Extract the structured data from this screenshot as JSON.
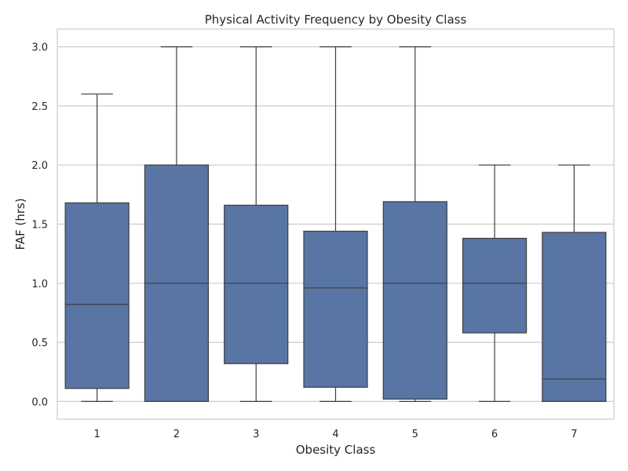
{
  "chart_data": {
    "type": "box",
    "title": "Physical Activity Frequency by Obesity Class",
    "xlabel": "Obesity Class",
    "ylabel": "FAF (hrs)",
    "ylim": [
      -0.15,
      3.15
    ],
    "yticks": [
      0.0,
      0.5,
      1.0,
      1.5,
      2.0,
      2.5,
      3.0
    ],
    "ytick_labels": [
      "0.0",
      "0.5",
      "1.0",
      "1.5",
      "2.0",
      "2.5",
      "3.0"
    ],
    "grid": true,
    "box_color": "#5875a4",
    "line_color": "#3f3f3f",
    "categories": [
      "1",
      "2",
      "3",
      "4",
      "5",
      "6",
      "7"
    ],
    "boxes": [
      {
        "category": "1",
        "whisker_low": 0.0,
        "q1": 0.11,
        "median": 0.82,
        "q3": 1.68,
        "whisker_high": 2.6
      },
      {
        "category": "2",
        "whisker_low": 0.0,
        "q1": 0.0,
        "median": 1.0,
        "q3": 2.0,
        "whisker_high": 3.0
      },
      {
        "category": "3",
        "whisker_low": 0.0,
        "q1": 0.32,
        "median": 1.0,
        "q3": 1.66,
        "whisker_high": 3.0
      },
      {
        "category": "4",
        "whisker_low": 0.0,
        "q1": 0.12,
        "median": 0.96,
        "q3": 1.44,
        "whisker_high": 3.0
      },
      {
        "category": "5",
        "whisker_low": 0.0,
        "q1": 0.02,
        "median": 1.0,
        "q3": 1.69,
        "whisker_high": 3.0
      },
      {
        "category": "6",
        "whisker_low": 0.0,
        "q1": 0.58,
        "median": 1.0,
        "q3": 1.38,
        "whisker_high": 2.0
      },
      {
        "category": "7",
        "whisker_low": 0.0,
        "q1": 0.0,
        "median": 0.19,
        "q3": 1.43,
        "whisker_high": 2.0
      }
    ]
  }
}
